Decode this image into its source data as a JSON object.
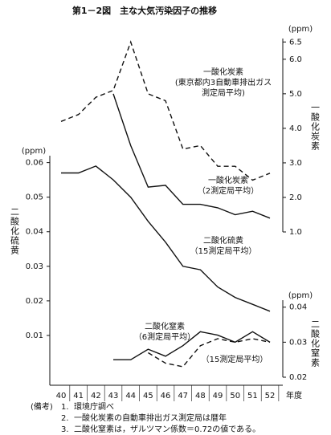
{
  "chart_data": {
    "type": "line",
    "title": "第1－2図　主な大気汚染因子の推移",
    "categories": [
      "40",
      "41",
      "42",
      "43",
      "44",
      "45",
      "46",
      "47",
      "48",
      "49",
      "50",
      "51",
      "52"
    ],
    "xlabel": "年度",
    "ylabel": "二酸化硫黄",
    "yunit": "(ppm)",
    "ylim": [
      0.0,
      0.062
    ],
    "yticks": [
      0.01,
      0.02,
      0.03,
      0.04,
      0.05,
      0.06
    ],
    "y2label": "一酸化炭素",
    "y2unit": "(ppm)",
    "y2lim": [
      1.0,
      6.6
    ],
    "y2ticks": [
      {
        "value": 1,
        "label": "1.0"
      },
      {
        "value": 2,
        "label": "2.0"
      },
      {
        "value": 3,
        "label": "3.0"
      },
      {
        "value": 4,
        "label": "4.0"
      },
      {
        "value": 5,
        "label": "5.0"
      },
      {
        "value": 6,
        "label": "6.0"
      },
      6.5
    ],
    "y3label": "二酸化窒素",
    "y3unit": "(ppm)",
    "y3lim": [
      0.02,
      0.042
    ],
    "y3ticks": [
      0.02,
      0.03,
      0.04
    ],
    "series": [
      {
        "label": [
          "一酸化炭素",
          "(東京都内3自動車排出ガス",
          "測定局平均)"
        ],
        "axis": "y2",
        "color": "#111111",
        "dash": true,
        "values": [
          4.2,
          4.4,
          4.9,
          5.1,
          6.5,
          5.0,
          4.8,
          3.4,
          3.5,
          2.9,
          2.9,
          2.5,
          2.7
        ]
      },
      {
        "label": [
          "一酸化炭素",
          "（2測定局平均）"
        ],
        "axis": "y2",
        "color": "#111111",
        "dash": false,
        "values": [
          null,
          null,
          null,
          5.0,
          3.5,
          2.3,
          2.35,
          1.8,
          1.8,
          1.7,
          1.5,
          1.6,
          1.4
        ]
      },
      {
        "label": [
          "二酸化硫黄",
          "（15測定局平均）"
        ],
        "axis": "y",
        "color": "#111111",
        "dash": false,
        "values": [
          0.057,
          0.057,
          0.059,
          0.055,
          0.05,
          0.043,
          0.037,
          0.03,
          0.029,
          0.024,
          0.021,
          0.019,
          0.017
        ]
      },
      {
        "label": [
          "二酸化窒素",
          "（6測定局平均）"
        ],
        "axis": "y3",
        "color": "#111111",
        "dash": false,
        "values": [
          null,
          null,
          null,
          0.025,
          0.025,
          0.028,
          0.026,
          0.029,
          0.033,
          0.032,
          0.03,
          0.033,
          0.03
        ]
      },
      {
        "label": [
          "（15測定局平均）"
        ],
        "axis": "y3",
        "color": "#111111",
        "dash": true,
        "values": [
          null,
          null,
          null,
          null,
          null,
          0.027,
          0.024,
          0.023,
          0.029,
          0.031,
          0.03,
          0.031,
          0.03
        ]
      }
    ]
  },
  "notes": {
    "header": "(備考)",
    "items": [
      {
        "number": "1.",
        "text": "環境庁調べ"
      },
      {
        "number": "2.",
        "text": "一酸化炭素の自動車排出ガス測定局は暦年"
      },
      {
        "number": "3.",
        "text": "二酸化窒素は，ザルツマン係数＝0.72の値である。"
      }
    ]
  }
}
